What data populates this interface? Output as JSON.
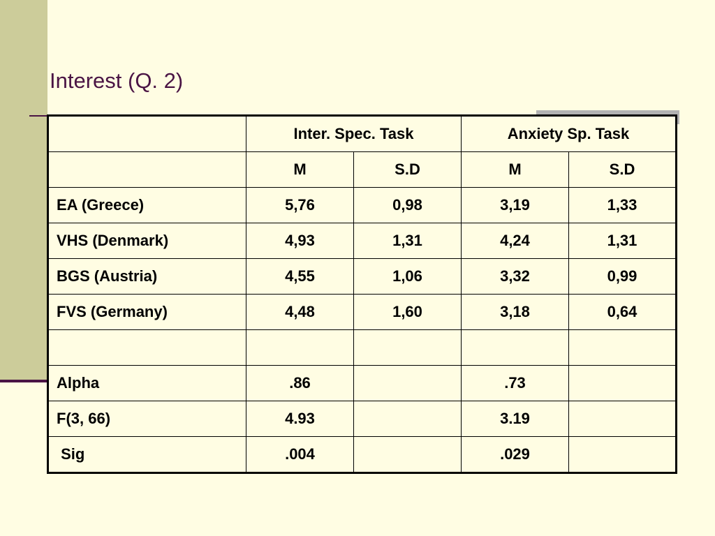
{
  "slide": {
    "title": "Interest (Q. 2)"
  },
  "table": {
    "group_headers": [
      "",
      "Inter. Spec. Task",
      "Anxiety Sp. Task"
    ],
    "sub_headers": [
      "",
      "M",
      "S.D",
      "M",
      "S.D"
    ],
    "rows": [
      [
        "EA (Greece)",
        "5,76",
        "0,98",
        "3,19",
        "1,33"
      ],
      [
        "VHS (Denmark)",
        "4,93",
        "1,31",
        "4,24",
        "1,31"
      ],
      [
        "BGS (Austria)",
        "4,55",
        "1,06",
        "3,32",
        "0,99"
      ],
      [
        "FVS (Germany)",
        "4,48",
        "1,60",
        "3,18",
        "0,64"
      ],
      [
        "",
        "",
        "",
        "",
        ""
      ],
      [
        "Alpha",
        ".86",
        "",
        ".73",
        ""
      ],
      [
        "F(3, 66)",
        "4.93",
        "",
        "3.19",
        ""
      ],
      [
        " Sig",
        ".004",
        "",
        ".029",
        ""
      ]
    ]
  },
  "colors": {
    "background": "#FFFDE3",
    "left_bar": "#CCCC9A",
    "title": "#4A1444",
    "accent_bar": "#B2B2B2"
  }
}
